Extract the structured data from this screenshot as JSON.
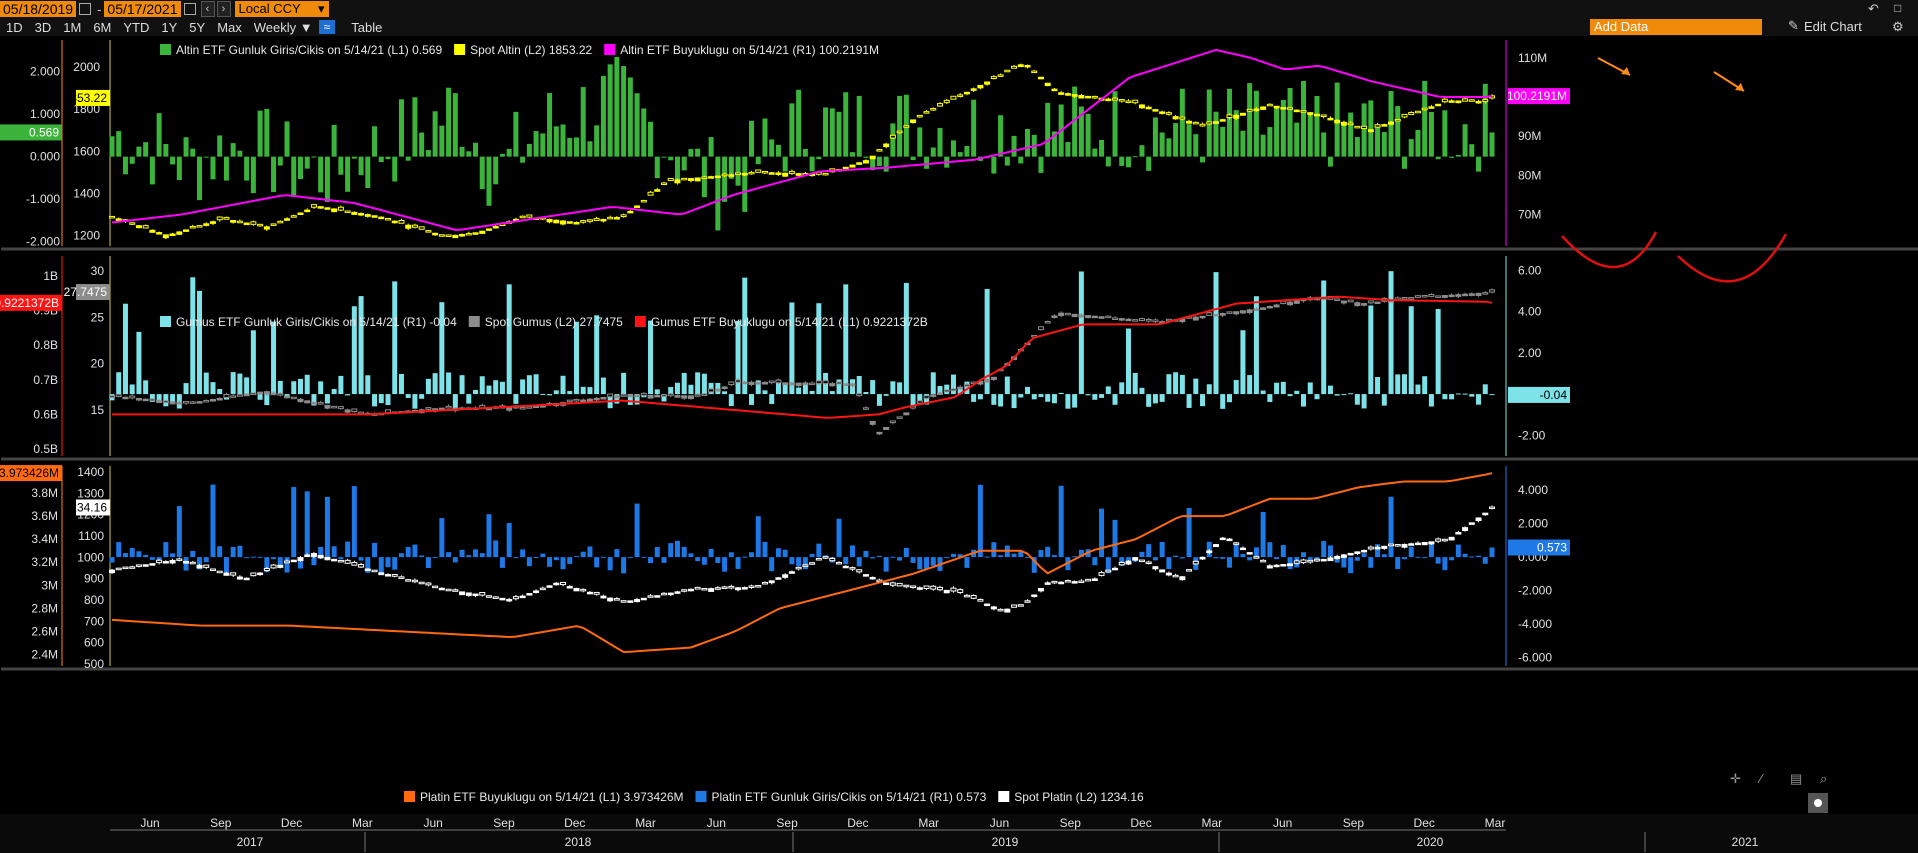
{
  "toolbar": {
    "start_date": "05/18/2019",
    "end_date": "05/17/2021",
    "dash": "-",
    "currency": "Local CCY",
    "ranges": [
      "1D",
      "3D",
      "1M",
      "6M",
      "YTD",
      "1Y",
      "5Y",
      "Max"
    ],
    "frequency": "Weekly",
    "table_label": "Table",
    "add_data_placeholder": "Add Data",
    "edit_chart_label": "Edit Chart"
  },
  "colors": {
    "green": "#3cb43c",
    "yellow": "#ffff00",
    "magenta": "#ff00ff",
    "cyan": "#7ee3e8",
    "grey": "#8c8c8c",
    "red": "#ff1414",
    "orange": "#ff6a10",
    "blue": "#1e78e6",
    "white": "#ffffff",
    "arrow": "#ff8c1a",
    "curve": "#e01010"
  },
  "chart_data": [
    {
      "type": "bar+candlestick+line",
      "legend": [
        {
          "text": "Altin ETF Gunluk Giris/Cikis on 5/14/21 (L1) 0.569",
          "color": "#3cb43c"
        },
        {
          "text": "Spot Altin (L2) 1853.22",
          "color": "#ffff00"
        },
        {
          "text": "Altin ETF Buyuklugu on 5/14/21 (R1) 100.2191M",
          "color": "#ff00ff"
        }
      ],
      "left_axis_1": {
        "ticks": [
          "2.000",
          "1.000",
          "0.000",
          "-1.000",
          "-2.000"
        ],
        "range": [
          -2.1,
          2.6
        ]
      },
      "left_axis_2": {
        "ticks": [
          "2000",
          "1800",
          "1600",
          "1400",
          "1200"
        ],
        "range": [
          1150,
          2100
        ]
      },
      "right_axis": {
        "ticks": [
          "110M",
          "100M",
          "90M",
          "80M",
          "70M"
        ],
        "range": [
          62,
          113
        ]
      },
      "labels": {
        "left_1": "0.569",
        "left_2": "1853.22",
        "right": "100.2191M"
      },
      "flows_keypoints": [
        [
          0,
          0.5
        ],
        [
          20,
          0.3
        ],
        [
          40,
          -0.2
        ],
        [
          60,
          0.2
        ],
        [
          80,
          0.1
        ],
        [
          100,
          -0.4
        ],
        [
          120,
          -0.3
        ],
        [
          140,
          0.2
        ],
        [
          160,
          0.6
        ],
        [
          180,
          1.2
        ],
        [
          200,
          -0.5
        ],
        [
          220,
          0.6
        ],
        [
          240,
          1.0
        ],
        [
          260,
          1.4
        ],
        [
          280,
          0.7
        ],
        [
          300,
          -0.2
        ],
        [
          320,
          -0.8
        ],
        [
          340,
          0.1
        ],
        [
          356,
          0.7
        ]
      ],
      "flows_current": 0.569,
      "spot_keypoints": [
        [
          0,
          1290
        ],
        [
          25,
          1200
        ],
        [
          50,
          1280
        ],
        [
          70,
          1240
        ],
        [
          92,
          1340
        ],
        [
          120,
          1290
        ],
        [
          150,
          1195
        ],
        [
          165,
          1215
        ],
        [
          185,
          1290
        ],
        [
          210,
          1260
        ],
        [
          230,
          1290
        ],
        [
          250,
          1460
        ],
        [
          290,
          1500
        ],
        [
          320,
          1490
        ],
        [
          340,
          1560
        ],
        [
          360,
          1750
        ],
        [
          410,
          2020
        ],
        [
          425,
          1880
        ],
        [
          460,
          1830
        ],
        [
          490,
          1720
        ],
        [
          520,
          1820
        ],
        [
          540,
          1780
        ],
        [
          565,
          1700
        ],
        [
          600,
          1840
        ],
        [
          620,
          1835
        ]
      ],
      "spot_current": 1853.22,
      "size_keypoints": [
        [
          0,
          68
        ],
        [
          40,
          70
        ],
        [
          100,
          75
        ],
        [
          140,
          73
        ],
        [
          200,
          66
        ],
        [
          260,
          70
        ],
        [
          290,
          72
        ],
        [
          330,
          70
        ],
        [
          360,
          75
        ],
        [
          410,
          81
        ],
        [
          450,
          82
        ],
        [
          500,
          84
        ],
        [
          540,
          88
        ],
        [
          590,
          105
        ],
        [
          640,
          112
        ],
        [
          660,
          110
        ],
        [
          680,
          107
        ],
        [
          700,
          108
        ],
        [
          730,
          104
        ],
        [
          770,
          100
        ],
        [
          800,
          100
        ]
      ],
      "size_current": 100.2191,
      "annotations": [
        "arrow",
        "arrow",
        "curve",
        "curve"
      ]
    },
    {
      "type": "bar+candlestick+line",
      "legend": [
        {
          "text": "Gumus ETF Gunluk Giris/Cikis on 5/14/21 (R1) -0.04",
          "color": "#7ee3e8"
        },
        {
          "text": "Spot Gumus (L2) 27.7475",
          "color": "#8c8c8c"
        },
        {
          "text": "Gumus ETF Buyuklugu on 5/14/21 (L1) 0.9221372B",
          "color": "#ff1414"
        }
      ],
      "left_axis_1": {
        "ticks": [
          "1B",
          "0.9B",
          "0.8B",
          "0.7B",
          "0.6B",
          "0.5B"
        ],
        "range": [
          0.48,
          1.04
        ]
      },
      "left_axis_2": {
        "ticks": [
          "30",
          "25",
          "20",
          "15"
        ],
        "range": [
          10,
          31
        ]
      },
      "right_axis": {
        "ticks": [
          "6.00",
          "4.00",
          "2.00",
          "-0.04",
          "-2.00"
        ],
        "range": [
          -3,
          6.4
        ]
      },
      "labels": {
        "left_1": "0.9221372B",
        "left_2": "27.7475",
        "right": "-0.04"
      },
      "flows_current": -0.04,
      "spot_keypoints": [
        [
          0,
          16.5
        ],
        [
          30,
          15.7
        ],
        [
          60,
          17
        ],
        [
          100,
          14.5
        ],
        [
          130,
          15.2
        ],
        [
          160,
          15.2
        ],
        [
          200,
          16.6
        ],
        [
          230,
          16.5
        ],
        [
          245,
          18
        ],
        [
          290,
          17.8
        ],
        [
          300,
          12.5
        ],
        [
          320,
          16.5
        ],
        [
          345,
          18.5
        ],
        [
          370,
          25.5
        ],
        [
          410,
          24.5
        ],
        [
          450,
          26
        ],
        [
          470,
          27.2
        ],
        [
          490,
          26.5
        ],
        [
          512,
          27.2
        ],
        [
          540,
          27.7
        ]
      ],
      "spot_current": 27.7475,
      "size_keypoints": [
        [
          0,
          0.6
        ],
        [
          100,
          0.6
        ],
        [
          200,
          0.64
        ],
        [
          280,
          0.59
        ],
        [
          300,
          0.6
        ],
        [
          310,
          0.62
        ],
        [
          330,
          0.65
        ],
        [
          340,
          0.7
        ],
        [
          350,
          0.74
        ],
        [
          360,
          0.82
        ],
        [
          380,
          0.86
        ],
        [
          410,
          0.86
        ],
        [
          440,
          0.92
        ],
        [
          460,
          0.93
        ],
        [
          480,
          0.94
        ],
        [
          500,
          0.93
        ],
        [
          540,
          0.925
        ]
      ],
      "size_current": 0.9221372
    },
    {
      "type": "bar+candlestick+line",
      "legend": [
        {
          "text": "Platin ETF Buyuklugu on 5/14/21 (L1) 3.973426M",
          "color": "#ff6a10"
        },
        {
          "text": "Platin ETF Gunluk Giris/Cikis on 5/14/21 (R1) 0.573",
          "color": "#1e78e6"
        },
        {
          "text": "Spot Platin (L2) 1234.16",
          "color": "#ffffff"
        }
      ],
      "left_axis_1": {
        "ticks": [
          "3.8M",
          "3.6M",
          "3.4M",
          "3.2M",
          "3M",
          "2.8M",
          "2.6M",
          "2.4M"
        ],
        "range": [
          2.3,
          4.0
        ]
      },
      "left_axis_2": {
        "ticks": [
          "1400",
          "1300",
          "1200",
          "1100",
          "1000",
          "900",
          "800",
          "700",
          "600",
          "500"
        ],
        "range": [
          490,
          1410
        ]
      },
      "right_axis": {
        "ticks": [
          "4.000",
          "2.000",
          "0.000",
          "-2.000",
          "-4.000",
          "-6.000"
        ],
        "range": [
          -6.5,
          5.2
        ]
      },
      "labels": {
        "left_1": "3.973426M",
        "left_2": "1234.16",
        "right": "0.573"
      },
      "flows_current": 0.573,
      "spot_keypoints": [
        [
          0,
          940
        ],
        [
          30,
          990
        ],
        [
          60,
          900
        ],
        [
          90,
          1020
        ],
        [
          120,
          930
        ],
        [
          150,
          850
        ],
        [
          180,
          800
        ],
        [
          200,
          880
        ],
        [
          230,
          790
        ],
        [
          260,
          850
        ],
        [
          290,
          860
        ],
        [
          320,
          1000
        ],
        [
          350,
          870
        ],
        [
          380,
          840
        ],
        [
          400,
          750
        ],
        [
          410,
          780
        ],
        [
          420,
          880
        ],
        [
          440,
          890
        ],
        [
          460,
          1000
        ],
        [
          480,
          900
        ],
        [
          500,
          1100
        ],
        [
          520,
          960
        ],
        [
          540,
          980
        ],
        [
          570,
          1050
        ],
        [
          600,
          1080
        ],
        [
          620,
          1230
        ]
      ],
      "spot_current": 1234.16,
      "size_keypoints": [
        [
          0,
          2.7
        ],
        [
          40,
          2.65
        ],
        [
          80,
          2.65
        ],
        [
          130,
          2.6
        ],
        [
          180,
          2.55
        ],
        [
          210,
          2.65
        ],
        [
          230,
          2.42
        ],
        [
          260,
          2.46
        ],
        [
          280,
          2.6
        ],
        [
          300,
          2.8
        ],
        [
          330,
          2.95
        ],
        [
          360,
          3.1
        ],
        [
          390,
          3.3
        ],
        [
          410,
          3.3
        ],
        [
          420,
          3.1
        ],
        [
          440,
          3.3
        ],
        [
          460,
          3.4
        ],
        [
          480,
          3.6
        ],
        [
          500,
          3.6
        ],
        [
          520,
          3.75
        ],
        [
          540,
          3.75
        ],
        [
          560,
          3.85
        ],
        [
          580,
          3.9
        ],
        [
          600,
          3.9
        ],
        [
          620,
          3.97
        ]
      ],
      "size_current": 3.973426
    }
  ],
  "x_axis": {
    "months": [
      "Jun",
      "Sep",
      "Dec",
      "Mar",
      "Jun",
      "Sep",
      "Dec",
      "Mar",
      "Jun",
      "Sep",
      "Dec",
      "Mar",
      "Jun",
      "Sep",
      "Dec",
      "Mar",
      "Jun",
      "Sep",
      "Dec",
      "Mar"
    ],
    "years": [
      "2017",
      "2018",
      "2019",
      "2020",
      "2021"
    ]
  }
}
